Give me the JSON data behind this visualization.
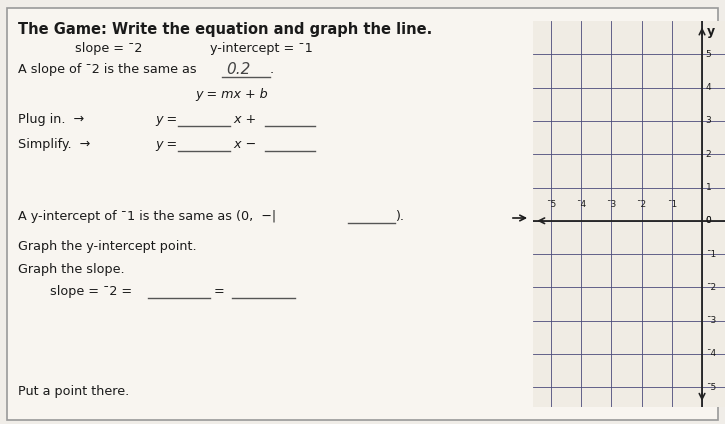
{
  "title": "The Game: Write the equation and graph the line.",
  "bg_color": "#f0ede8",
  "panel_bg": "#f5f2ee",
  "text_color": "#1a1a1a",
  "grid_color": "#4a4a7a",
  "axis_color": "#222222",
  "border_color": "#888888",
  "handwritten_color": "#333333",
  "line_color": "#555555",
  "slope_label": "slope = ¯2",
  "intercept_label": "y-intercept = ¯1",
  "plug_label": "Plug in.",
  "simplify_label": "Simplify.",
  "ymx_b": "y = mx + b",
  "arrow": "→",
  "graph_xlim_min": -5.6,
  "graph_xlim_max": 1.6,
  "graph_ylim_min": -5.6,
  "graph_ylim_max": 6.0,
  "grid_x_vals": [
    -5,
    -4,
    -3,
    -2,
    -1,
    0,
    1
  ],
  "grid_y_vals": [
    -5,
    -4,
    -3,
    -2,
    -1,
    0,
    1,
    2,
    3,
    4,
    5
  ],
  "x_tick_labels": [
    "¯5",
    "¯4",
    "¯3",
    "¯2",
    "¯1"
  ],
  "y_tick_labels_pos": [
    5,
    4,
    3,
    2,
    1,
    0,
    -1,
    -2,
    -3,
    -4,
    -5
  ],
  "y_tick_strings": [
    "5",
    "4",
    "3",
    "2",
    "1",
    "0",
    "¯1",
    "¯2",
    "¯3",
    "¯4",
    "¯5"
  ]
}
